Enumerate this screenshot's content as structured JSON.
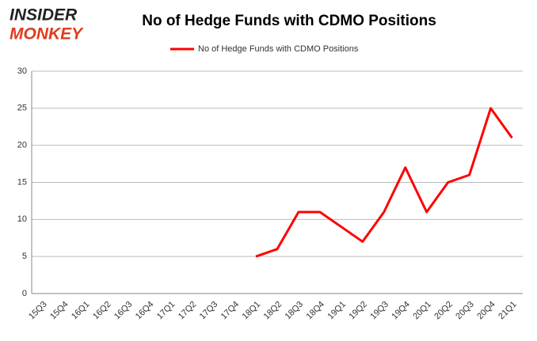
{
  "logo": {
    "line1": "INSIDER",
    "line2": "MONKEY"
  },
  "chart_data": {
    "type": "line",
    "title": "No of Hedge Funds with CDMO Positions",
    "categories": [
      "15Q3",
      "15Q4",
      "16Q1",
      "16Q2",
      "16Q3",
      "16Q4",
      "17Q1",
      "17Q2",
      "17Q3",
      "17Q4",
      "18Q1",
      "18Q2",
      "18Q3",
      "18Q4",
      "19Q1",
      "19Q2",
      "19Q3",
      "19Q4",
      "20Q1",
      "20Q2",
      "20Q3",
      "20Q4",
      "21Q1"
    ],
    "series": [
      {
        "name": "No of Hedge Funds with CDMO Positions",
        "color": "#ff0000",
        "values": [
          null,
          null,
          null,
          null,
          null,
          null,
          null,
          null,
          null,
          null,
          5,
          6,
          11,
          11,
          9,
          7,
          11,
          17,
          11,
          15,
          16,
          25,
          21
        ]
      }
    ],
    "ylim": [
      0,
      30
    ],
    "yticks": [
      0,
      5,
      10,
      15,
      20,
      25,
      30
    ],
    "grid": true,
    "legend": "top"
  }
}
